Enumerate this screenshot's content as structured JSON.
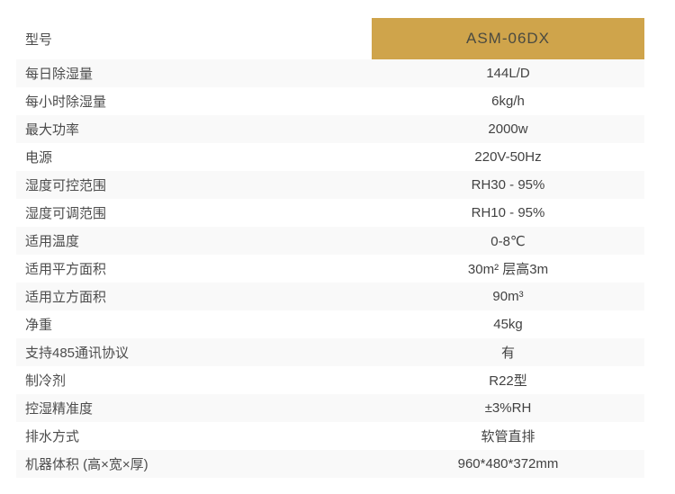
{
  "colors": {
    "accent_gold": "#CFA44B",
    "stripe": "#f9f9f9",
    "text": "#4c4c4c"
  },
  "table": {
    "model_label": "型号",
    "model_value": "ASM-06DX",
    "rows": [
      {
        "label": "每日除湿量",
        "value": "144L/D"
      },
      {
        "label": "每小时除湿量",
        "value": "6kg/h"
      },
      {
        "label": "最大功率",
        "value": "2000w"
      },
      {
        "label": "电源",
        "value": "220V-50Hz"
      },
      {
        "label": "湿度可控范围",
        "value": "RH30 - 95%"
      },
      {
        "label": "湿度可调范围",
        "value": "RH10 - 95%"
      },
      {
        "label": "适用温度",
        "value": "0-8℃"
      },
      {
        "label": "适用平方面积",
        "value": "30m² 层高3m"
      },
      {
        "label": "适用立方面积",
        "value": "90m³"
      },
      {
        "label": "净重",
        "value": "45kg"
      },
      {
        "label": "支持485通讯协议",
        "value": "有"
      },
      {
        "label": "制冷剂",
        "value": "R22型"
      },
      {
        "label": "控湿精准度",
        "value": "±3%RH"
      },
      {
        "label": "排水方式",
        "value": "软管直排"
      },
      {
        "label": "机器体积 (高×宽×厚)",
        "value": "960*480*372mm"
      }
    ]
  }
}
